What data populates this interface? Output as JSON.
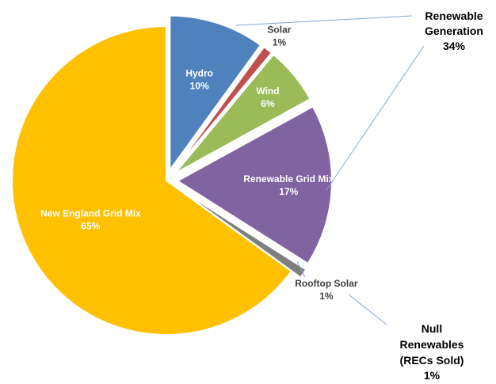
{
  "chart_data": {
    "type": "pie",
    "title": "",
    "slices": [
      {
        "label": "Hydro",
        "value": 10,
        "value_label": "10%",
        "color": "#4f81bd",
        "exploded": true
      },
      {
        "label": "Solar",
        "value": 1,
        "value_label": "1%",
        "color": "#c0504d",
        "exploded": true
      },
      {
        "label": "Wind",
        "value": 6,
        "value_label": "6%",
        "color": "#9bbb59",
        "exploded": true
      },
      {
        "label": "Renewable Grid Mix",
        "value": 17,
        "value_label": "17%",
        "color": "#8064a2",
        "exploded": true
      },
      {
        "label": "Rooftop Solar",
        "value": 1,
        "value_label": "1%",
        "color": "#7f7f7f",
        "exploded": true
      },
      {
        "label": "New England Grid Mix",
        "value": 65,
        "value_label": "65%",
        "color": "#ffc000",
        "exploded": false
      }
    ],
    "callouts": [
      {
        "lines": [
          "Renewable",
          "Generation",
          "34%"
        ]
      },
      {
        "lines": [
          "Null",
          "Renewables",
          "(RECs Sold)",
          "1%"
        ]
      }
    ]
  }
}
